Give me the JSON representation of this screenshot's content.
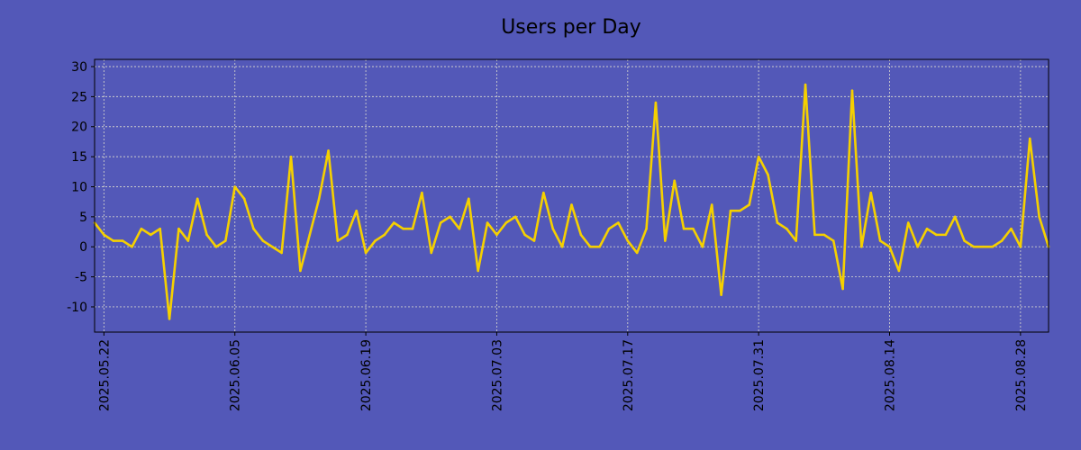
{
  "chart_data": {
    "type": "line",
    "title": "Users per Day",
    "xlabel": "",
    "ylabel": "",
    "x_start": "2025-05-21",
    "x_step_days": 1,
    "x_tick_labels": [
      "2025.05.22",
      "2025.06.05",
      "2025.06.19",
      "2025.07.03",
      "2025.07.17",
      "2025.07.31",
      "2025.08.14",
      "2025.08.28"
    ],
    "x_tick_day_offsets": [
      1,
      15,
      29,
      43,
      57,
      71,
      85,
      99
    ],
    "y_ticks": [
      -10,
      -5,
      0,
      5,
      10,
      15,
      20,
      25,
      30
    ],
    "ylim": [
      -14.2,
      31.2
    ],
    "grid": true,
    "series": [
      {
        "name": "Users",
        "color": "#f5d000",
        "values": [
          4,
          2,
          1,
          1,
          0,
          3,
          2,
          3,
          -12,
          3,
          1,
          8,
          2,
          0,
          1,
          10,
          8,
          3,
          1,
          0,
          -1,
          15,
          -4,
          2,
          8,
          16,
          1,
          2,
          6,
          -1,
          1,
          2,
          4,
          3,
          3,
          9,
          -1,
          4,
          5,
          3,
          8,
          -4,
          4,
          2,
          4,
          5,
          2,
          1,
          9,
          3,
          0,
          7,
          2,
          0,
          0,
          3,
          4,
          1,
          -1,
          3,
          24,
          1,
          11,
          3,
          3,
          0,
          7,
          -8,
          6,
          6,
          7,
          15,
          12,
          4,
          3,
          1,
          27,
          2,
          2,
          1,
          -7,
          26,
          0,
          9,
          1,
          0,
          -4,
          4,
          0,
          3,
          2,
          2,
          5,
          1,
          0,
          0,
          0,
          1,
          3,
          0,
          18,
          5,
          0
        ]
      }
    ]
  }
}
